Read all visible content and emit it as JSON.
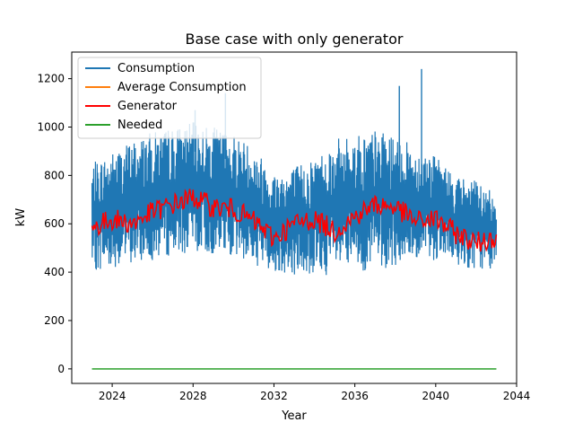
{
  "chart_data": {
    "type": "line",
    "title": "Base case with only generator",
    "xlabel": "Year",
    "ylabel": "kW",
    "xlim": [
      2022.0,
      2044.0
    ],
    "ylim": [
      -60,
      1310
    ],
    "xticks": [
      2024,
      2028,
      2032,
      2036,
      2040,
      2044
    ],
    "yticks": [
      0,
      200,
      400,
      600,
      800,
      1000,
      1200
    ],
    "grid": false,
    "legend_position": "top-left",
    "x_start": 2023.0,
    "x_end": 2043.0,
    "series": [
      {
        "name": "Consumption",
        "color": "#1f77b4",
        "style": "dense noisy band",
        "envelope": {
          "x": [
            2023.0,
            2024.0,
            2025.0,
            2026.0,
            2027.0,
            2028.0,
            2029.0,
            2030.0,
            2031.0,
            2032.0,
            2033.0,
            2034.0,
            2035.0,
            2036.0,
            2037.0,
            2038.0,
            2039.0,
            2040.0,
            2041.0,
            2042.0,
            2043.0
          ],
          "lower": [
            400,
            420,
            430,
            450,
            470,
            480,
            470,
            470,
            430,
            400,
            390,
            380,
            390,
            400,
            410,
            420,
            440,
            450,
            430,
            410,
            410
          ],
          "upper": [
            850,
            900,
            950,
            980,
            1000,
            1020,
            1000,
            980,
            920,
            820,
            840,
            880,
            950,
            970,
            990,
            960,
            920,
            880,
            800,
            780,
            720
          ]
        },
        "peaks": [
          {
            "x": 2028.1,
            "y": 1070
          },
          {
            "x": 2029.6,
            "y": 1140
          },
          {
            "x": 2038.2,
            "y": 1170
          },
          {
            "x": 2039.3,
            "y": 1240
          }
        ]
      },
      {
        "name": "Average Consumption",
        "color": "#ff7f0e",
        "style": "line hidden beneath Generator",
        "x": [],
        "values": []
      },
      {
        "name": "Generator",
        "color": "#ff0000",
        "style": "line",
        "x": [
          2023.0,
          2024.0,
          2025.0,
          2026.0,
          2027.0,
          2028.0,
          2029.0,
          2030.0,
          2031.0,
          2032.0,
          2033.0,
          2034.0,
          2035.0,
          2036.0,
          2037.0,
          2038.0,
          2039.0,
          2040.0,
          2041.0,
          2042.0,
          2043.0
        ],
        "values": [
          580,
          620,
          600,
          650,
          680,
          710,
          670,
          660,
          610,
          540,
          600,
          620,
          570,
          630,
          680,
          670,
          610,
          620,
          560,
          520,
          550
        ]
      },
      {
        "name": "Needed",
        "color": "#2ca02c",
        "style": "line",
        "x": [
          2023.0,
          2043.0
        ],
        "values": [
          0,
          0
        ]
      }
    ]
  }
}
